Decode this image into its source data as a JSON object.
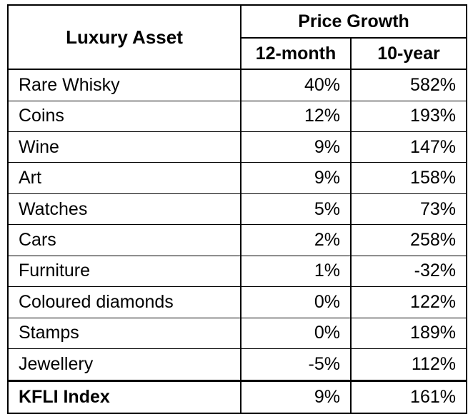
{
  "table": {
    "header": {
      "asset": "Luxury Asset",
      "group": "Price Growth",
      "col_12m": "12-month",
      "col_10y": "10-year"
    },
    "rows": [
      {
        "asset": "Rare Whisky",
        "m12": "40%",
        "y10": "582%"
      },
      {
        "asset": "Coins",
        "m12": "12%",
        "y10": "193%"
      },
      {
        "asset": "Wine",
        "m12": "9%",
        "y10": "147%"
      },
      {
        "asset": "Art",
        "m12": "9%",
        "y10": "158%"
      },
      {
        "asset": "Watches",
        "m12": "5%",
        "y10": "73%"
      },
      {
        "asset": "Cars",
        "m12": "2%",
        "y10": "258%"
      },
      {
        "asset": "Furniture",
        "m12": "1%",
        "y10": "-32%"
      },
      {
        "asset": "Coloured diamonds",
        "m12": "0%",
        "y10": "122%"
      },
      {
        "asset": "Stamps",
        "m12": "0%",
        "y10": "189%"
      },
      {
        "asset": "Jewellery",
        "m12": "-5%",
        "y10": "112%"
      }
    ],
    "total": {
      "asset": "KFLI Index",
      "m12": "9%",
      "y10": "161%"
    }
  },
  "chart_data": {
    "type": "table",
    "columns": [
      "Luxury Asset",
      "12-month",
      "10-year"
    ],
    "column_group": "Price Growth",
    "rows": [
      [
        "Rare Whisky",
        40,
        582
      ],
      [
        "Coins",
        12,
        193
      ],
      [
        "Wine",
        9,
        147
      ],
      [
        "Art",
        9,
        158
      ],
      [
        "Watches",
        5,
        73
      ],
      [
        "Cars",
        2,
        258
      ],
      [
        "Furniture",
        1,
        -32
      ],
      [
        "Coloured diamonds",
        0,
        122
      ],
      [
        "Stamps",
        0,
        189
      ],
      [
        "Jewellery",
        -5,
        112
      ],
      [
        "KFLI Index",
        9,
        161
      ]
    ],
    "unit": "%"
  }
}
